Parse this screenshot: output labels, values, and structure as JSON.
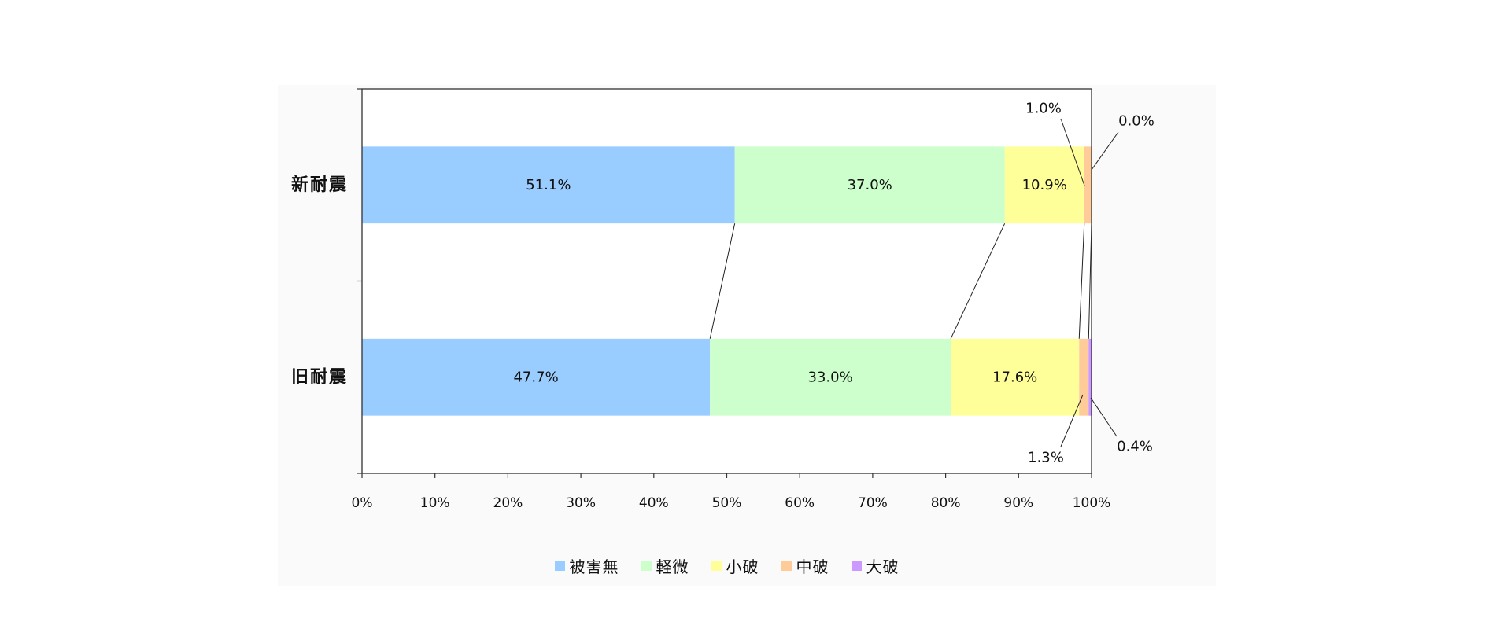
{
  "chart_data": {
    "type": "bar",
    "orientation": "horizontal",
    "stacked": "percent",
    "categories": [
      "新耐震",
      "旧耐震"
    ],
    "series": [
      {
        "name": "被害無",
        "values": [
          51.1,
          47.7
        ],
        "labels": [
          "51.1%",
          "47.7%"
        ],
        "color": "#99CCFF"
      },
      {
        "name": "軽微",
        "values": [
          37.0,
          33.0
        ],
        "labels": [
          "37.0%",
          "33.0%"
        ],
        "color": "#CCFFCC"
      },
      {
        "name": "小破",
        "values": [
          10.9,
          17.6
        ],
        "labels": [
          "10.9%",
          "17.6%"
        ],
        "color": "#FFFF99"
      },
      {
        "name": "中破",
        "values": [
          1.0,
          1.3
        ],
        "labels": [
          "1.0%",
          "1.3%"
        ],
        "color": "#FFCC99"
      },
      {
        "name": "大破",
        "values": [
          0.0,
          0.4
        ],
        "labels": [
          "0.0%",
          "0.4%"
        ],
        "color": "#CC99FF"
      }
    ],
    "xlim": [
      0,
      100
    ],
    "x_tick_labels": [
      "0%",
      "10%",
      "20%",
      "30%",
      "40%",
      "50%",
      "60%",
      "70%",
      "80%",
      "90%",
      "100%"
    ],
    "grid": false,
    "series_lines": true,
    "legend": "bottom"
  }
}
